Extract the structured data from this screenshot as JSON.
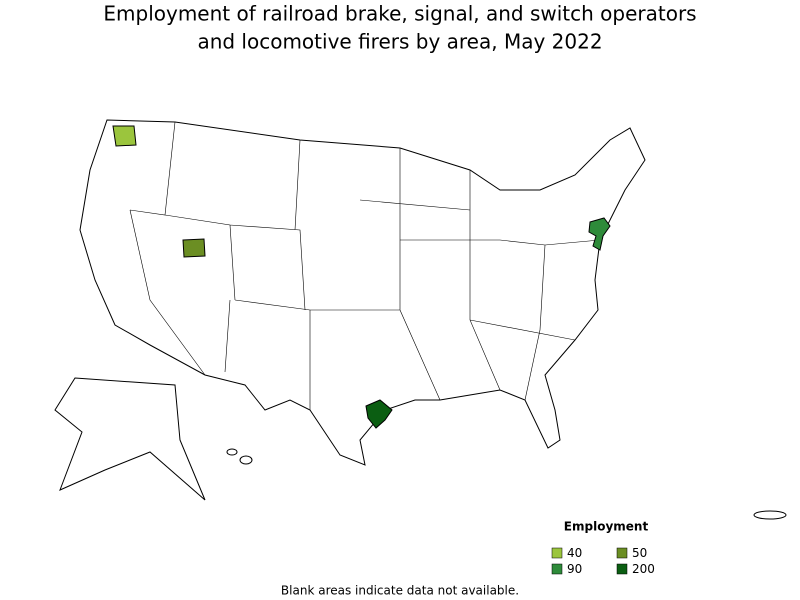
{
  "title": [
    "Employment of railroad brake, signal, and switch operators",
    "and locomotive firers by area, May 2022"
  ],
  "legend": {
    "title": "Employment",
    "items": [
      {
        "label": 40,
        "color": "#9bc53d"
      },
      {
        "label": 50,
        "color": "#6b8e23"
      },
      {
        "label": 90,
        "color": "#2e8b3a"
      },
      {
        "label": 200,
        "color": "#0b5e12"
      }
    ]
  },
  "footnote": "Blank areas indicate data not available."
}
